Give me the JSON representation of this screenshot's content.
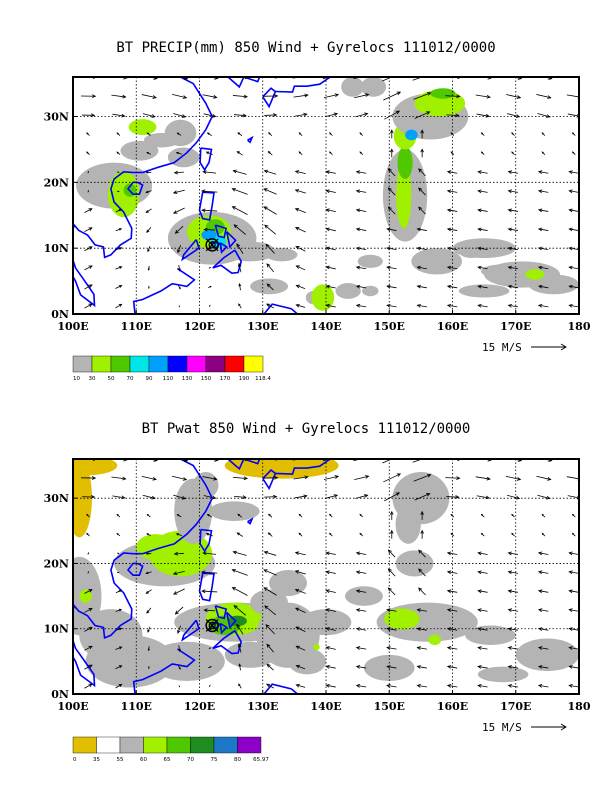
{
  "chart_data": [
    {
      "type": "heatmap",
      "title": "BT PRECIP(mm) 850 Wind + Gyrelocs 111012/0000",
      "x_ticks": [
        "100E",
        "110E",
        "120E",
        "130E",
        "140E",
        "150E",
        "160E",
        "170E",
        "180"
      ],
      "y_ticks": [
        "0N",
        "10N",
        "20N",
        "30N"
      ],
      "xlim": [
        100,
        180
      ],
      "ylim": [
        0,
        36
      ],
      "grid": true,
      "wind_reference": "15 M/S",
      "colorbar_labels": [
        "10",
        "30",
        "50",
        "70",
        "90",
        "110",
        "130",
        "150",
        "170",
        "190",
        "118.4"
      ],
      "colorbar_colors": [
        "#b4b4b4",
        "#a0f000",
        "#50c800",
        "#00e6e6",
        "#00a0ff",
        "#0000ff",
        "#ff00ff",
        "#8c0082",
        "#ff0000",
        "#ffff00"
      ],
      "gyre_center": {
        "lon": 122,
        "lat": 10.5
      }
    },
    {
      "type": "heatmap",
      "title": "BT Pwat 850 Wind + Gyrelocs 111012/0000",
      "x_ticks": [
        "100E",
        "110E",
        "120E",
        "130E",
        "140E",
        "150E",
        "160E",
        "170E",
        "180"
      ],
      "y_ticks": [
        "0N",
        "10N",
        "20N",
        "30N"
      ],
      "xlim": [
        100,
        180
      ],
      "ylim": [
        0,
        36
      ],
      "grid": true,
      "wind_reference": "15 M/S",
      "colorbar_labels": [
        "0",
        "35",
        "55",
        "60",
        "65",
        "70",
        "75",
        "80",
        "65.97"
      ],
      "colorbar_colors": [
        "#e1be00",
        "#ffffff",
        "#b4b4b4",
        "#a0f000",
        "#50c800",
        "#1e8c1e",
        "#1e78c8",
        "#8c00c8"
      ],
      "gyre_center": {
        "lon": 122,
        "lat": 10.5
      }
    }
  ],
  "colors": {
    "coastline": "#0000ff",
    "grid": "#000000",
    "arrow": "#000000",
    "gyre_marker": "#000000"
  }
}
